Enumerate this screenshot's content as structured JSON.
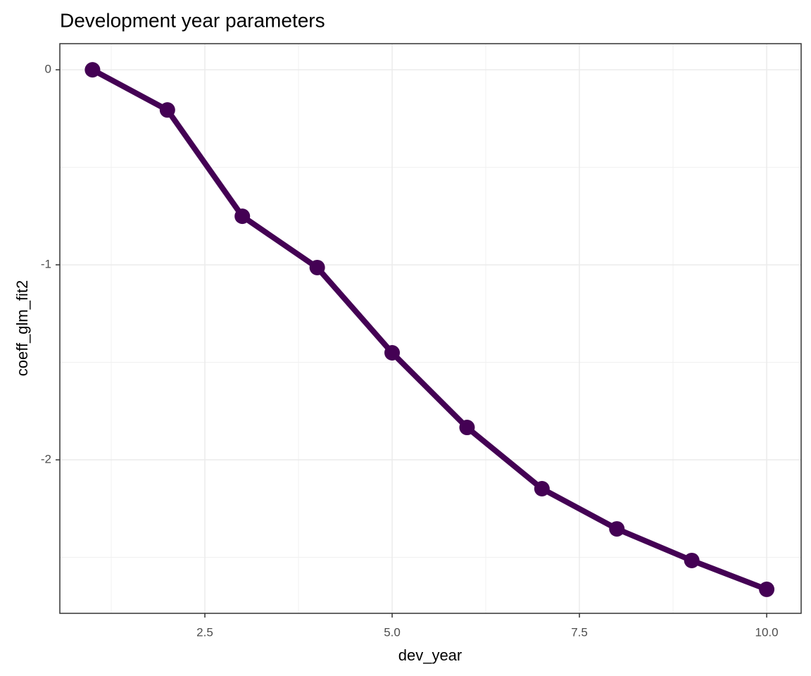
{
  "chart_data": {
    "type": "line",
    "title": "Development year parameters",
    "x_label": "dev_year",
    "y_label": "coeff_glm_fit2",
    "x": [
      1,
      2,
      3,
      4,
      5,
      6,
      7,
      8,
      9,
      10
    ],
    "series": [
      {
        "name": "coeff_glm_fit2",
        "color": "#440154",
        "values": [
          0,
          -0.206,
          -0.751,
          -1.014,
          -1.451,
          -1.834,
          -2.148,
          -2.354,
          -2.516,
          -2.664
        ]
      }
    ],
    "xlim": [
      0.564,
      10.46
    ],
    "ylim": [
      -2.787,
      0.134
    ],
    "xticks": [
      {
        "value": 2.5,
        "label": "2.5"
      },
      {
        "value": 5,
        "label": "5.0"
      },
      {
        "value": 7.5,
        "label": "7.5"
      },
      {
        "value": 10,
        "label": "10.0"
      }
    ],
    "yticks": [
      0,
      -1,
      -2
    ],
    "x_minor_grid": [
      1.25,
      3.75,
      6.25,
      8.75
    ],
    "y_minor_grid": [
      -0.5,
      -1.5,
      -2.5
    ],
    "grid": true,
    "markers": true
  }
}
